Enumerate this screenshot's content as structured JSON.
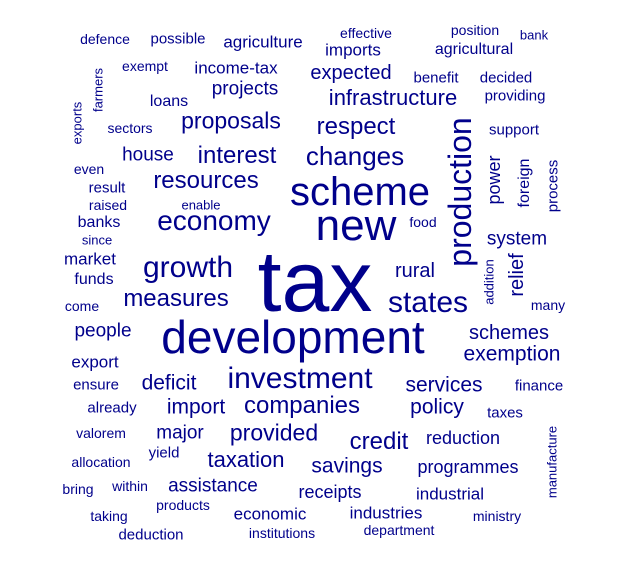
{
  "color": "#00008b",
  "words": [
    {
      "text": "tax",
      "weight": 100
    },
    {
      "text": "development",
      "weight": 55
    },
    {
      "text": "new",
      "weight": 48
    },
    {
      "text": "scheme",
      "weight": 45
    },
    {
      "text": "production",
      "weight": 38
    },
    {
      "text": "investment",
      "weight": 35
    },
    {
      "text": "economy",
      "weight": 32
    },
    {
      "text": "growth",
      "weight": 32
    },
    {
      "text": "states",
      "weight": 30
    },
    {
      "text": "changes",
      "weight": 28
    },
    {
      "text": "companies",
      "weight": 27
    },
    {
      "text": "resources",
      "weight": 26
    },
    {
      "text": "respect",
      "weight": 25
    },
    {
      "text": "measures",
      "weight": 25
    },
    {
      "text": "interest",
      "weight": 25
    },
    {
      "text": "proposals",
      "weight": 24
    },
    {
      "text": "credit",
      "weight": 24
    },
    {
      "text": "infrastructure",
      "weight": 24
    },
    {
      "text": "provided",
      "weight": 23
    },
    {
      "text": "exemption",
      "weight": 22
    },
    {
      "text": "taxation",
      "weight": 22
    },
    {
      "text": "savings",
      "weight": 22
    },
    {
      "text": "services",
      "weight": 22
    },
    {
      "text": "policy",
      "weight": 22
    },
    {
      "text": "import",
      "weight": 22
    },
    {
      "text": "deficit",
      "weight": 22
    },
    {
      "text": "schemes",
      "weight": 21
    },
    {
      "text": "rural",
      "weight": 21
    },
    {
      "text": "relief",
      "weight": 21
    },
    {
      "text": "expected",
      "weight": 21
    },
    {
      "text": "projects",
      "weight": 20
    },
    {
      "text": "house",
      "weight": 20
    },
    {
      "text": "major",
      "weight": 20
    },
    {
      "text": "assistance",
      "weight": 20
    },
    {
      "text": "system",
      "weight": 20
    },
    {
      "text": "people",
      "weight": 20
    },
    {
      "text": "programmes",
      "weight": 19
    },
    {
      "text": "receipts",
      "weight": 19
    },
    {
      "text": "reduction",
      "weight": 19
    },
    {
      "text": "power",
      "weight": 19
    },
    {
      "text": "industrial",
      "weight": 18
    },
    {
      "text": "imports",
      "weight": 18
    },
    {
      "text": "agriculture",
      "weight": 18
    },
    {
      "text": "income-tax",
      "weight": 18
    },
    {
      "text": "economic",
      "weight": 18
    },
    {
      "text": "industries",
      "weight": 18
    },
    {
      "text": "export",
      "weight": 18
    },
    {
      "text": "market",
      "weight": 18
    },
    {
      "text": "agricultural",
      "weight": 17
    },
    {
      "text": "foreign",
      "weight": 17
    },
    {
      "text": "loans",
      "weight": 17
    },
    {
      "text": "banks",
      "weight": 17
    },
    {
      "text": "funds",
      "weight": 17
    },
    {
      "text": "benefit",
      "weight": 16
    },
    {
      "text": "decided",
      "weight": 16
    },
    {
      "text": "providing",
      "weight": 16
    },
    {
      "text": "support",
      "weight": 16
    },
    {
      "text": "process",
      "weight": 16
    },
    {
      "text": "finance",
      "weight": 16
    },
    {
      "text": "taxes",
      "weight": 16
    },
    {
      "text": "ensure",
      "weight": 16
    },
    {
      "text": "already",
      "weight": 16
    },
    {
      "text": "valorem",
      "weight": 15
    },
    {
      "text": "yield",
      "weight": 16
    },
    {
      "text": "allocation",
      "weight": 15
    },
    {
      "text": "within",
      "weight": 15
    },
    {
      "text": "products",
      "weight": 15
    },
    {
      "text": "bring",
      "weight": 15
    },
    {
      "text": "taking",
      "weight": 15
    },
    {
      "text": "deduction",
      "weight": 16
    },
    {
      "text": "institutions",
      "weight": 15
    },
    {
      "text": "department",
      "weight": 15
    },
    {
      "text": "ministry",
      "weight": 15
    },
    {
      "text": "manufacture",
      "weight": 14
    },
    {
      "text": "many",
      "weight": 15
    },
    {
      "text": "addition",
      "weight": 14
    },
    {
      "text": "come",
      "weight": 15
    },
    {
      "text": "food",
      "weight": 15
    },
    {
      "text": "enable",
      "weight": 14
    },
    {
      "text": "raised",
      "weight": 15
    },
    {
      "text": "result",
      "weight": 16
    },
    {
      "text": "since",
      "weight": 14
    },
    {
      "text": "even",
      "weight": 15
    },
    {
      "text": "sectors",
      "weight": 15
    },
    {
      "text": "exempt",
      "weight": 15
    },
    {
      "text": "exports",
      "weight": 14
    },
    {
      "text": "farmers",
      "weight": 14
    },
    {
      "text": "defence",
      "weight": 15
    },
    {
      "text": "possible",
      "weight": 16
    },
    {
      "text": "effective",
      "weight": 15
    },
    {
      "text": "position",
      "weight": 15
    },
    {
      "text": "bank",
      "weight": 14
    }
  ]
}
